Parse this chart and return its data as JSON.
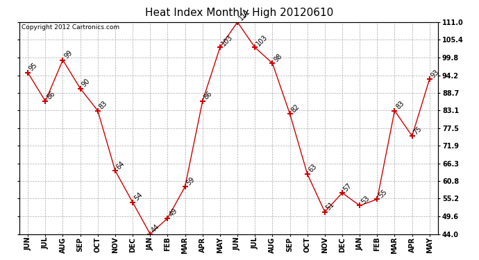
{
  "title": "Heat Index Monthly High 20120610",
  "copyright": "Copyright 2012 Cartronics.com",
  "months": [
    "JUN",
    "JUL",
    "AUG",
    "SEP",
    "OCT",
    "NOV",
    "DEC",
    "JAN",
    "FEB",
    "MAR",
    "APR",
    "MAY",
    "JUN",
    "JUL",
    "AUG",
    "SEP",
    "OCT",
    "NOV",
    "DEC",
    "JAN",
    "FEB",
    "MAR",
    "APR",
    "MAY"
  ],
  "values": [
    95,
    86,
    99,
    90,
    83,
    64,
    54,
    44,
    49,
    59,
    86,
    103,
    111,
    103,
    98,
    82,
    63,
    51,
    57,
    53,
    55,
    83,
    75,
    93
  ],
  "line_color": "#cc0000",
  "marker": "+",
  "marker_color": "#cc0000",
  "bg_color": "#ffffff",
  "grid_color": "#aaaaaa",
  "ylim": [
    44.0,
    111.0
  ],
  "yticks": [
    44.0,
    49.6,
    55.2,
    60.8,
    66.3,
    71.9,
    77.5,
    83.1,
    88.7,
    94.2,
    99.8,
    105.4,
    111.0
  ],
  "ytick_labels": [
    "44.0",
    "49.6",
    "55.2",
    "60.8",
    "66.3",
    "71.9",
    "77.5",
    "83.1",
    "88.7",
    "94.2",
    "99.8",
    "105.4",
    "111.0"
  ],
  "title_fontsize": 11,
  "label_fontsize": 7,
  "copyright_fontsize": 6.5,
  "annotation_fontsize": 7
}
